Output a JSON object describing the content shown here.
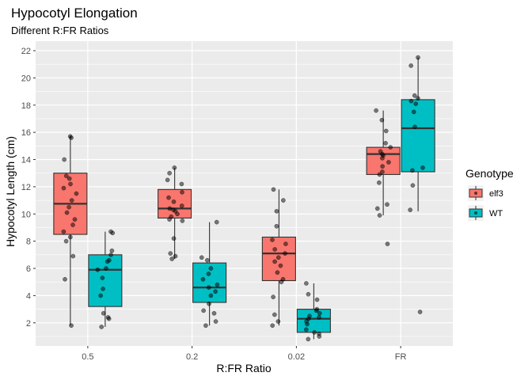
{
  "chart_data": {
    "type": "boxplot",
    "title": "Hypocotyl Elongation",
    "subtitle": "Different R:FR Ratios",
    "xlabel": "R:FR Ratio",
    "ylabel": "Hypocotyl Length (cm)",
    "categories": [
      "0.5",
      "0.2",
      "0.02",
      "FR"
    ],
    "ylim": [
      0.3,
      22.7
    ],
    "yticks": [
      2,
      4,
      6,
      8,
      10,
      12,
      14,
      16,
      18,
      20,
      22
    ],
    "grid": true,
    "legend": {
      "title": "Genotype",
      "position": "right",
      "entries": [
        "elf3",
        "WT"
      ]
    },
    "series": [
      {
        "name": "elf3",
        "color": "#F8766D",
        "boxes": [
          {
            "category": "0.5",
            "min": 1.8,
            "q1": 8.5,
            "median": 10.75,
            "q3": 13.0,
            "max": 15.75
          },
          {
            "category": "0.2",
            "min": 6.7,
            "q1": 9.7,
            "median": 10.4,
            "q3": 11.8,
            "max": 13.4
          },
          {
            "category": "0.02",
            "min": 1.8,
            "q1": 5.1,
            "median": 7.1,
            "q3": 8.3,
            "max": 11.8
          },
          {
            "category": "FR",
            "min": 9.9,
            "q1": 12.9,
            "median": 14.4,
            "q3": 14.9,
            "max": 17.6
          }
        ],
        "points": [
          {
            "category": "0.5",
            "values": [
              15.7,
              15.6,
              14.0,
              12.8,
              12.6,
              12.2,
              11.9,
              11.5,
              11.0,
              10.5,
              10.1,
              9.6,
              9.2,
              8.7,
              8.3,
              8.0,
              6.9,
              5.2,
              1.8
            ]
          },
          {
            "category": "0.2",
            "values": [
              13.4,
              13.0,
              12.5,
              12.2,
              11.6,
              11.2,
              10.9,
              10.6,
              10.4,
              10.3,
              10.2,
              10.0,
              9.8,
              9.6,
              9.5,
              8.2,
              7.1,
              6.9,
              6.7
            ]
          },
          {
            "category": "0.02",
            "values": [
              11.8,
              11.0,
              10.2,
              9.1,
              8.1,
              7.8,
              7.4,
              7.1,
              6.8,
              6.5,
              6.2,
              5.7,
              5.2,
              5.0,
              3.9,
              2.6,
              2.1,
              1.8
            ]
          },
          {
            "category": "FR",
            "values": [
              17.6,
              16.9,
              16.1,
              15.2,
              14.9,
              14.6,
              14.4,
              14.3,
              14.1,
              13.8,
              13.5,
              13.1,
              12.9,
              12.3,
              10.7,
              10.4,
              9.9,
              7.8
            ]
          }
        ]
      },
      {
        "name": "WT",
        "color": "#00BFC4",
        "boxes": [
          {
            "category": "0.5",
            "min": 1.7,
            "q1": 3.2,
            "median": 5.9,
            "q3": 7.0,
            "max": 8.7
          },
          {
            "category": "0.2",
            "min": 1.8,
            "q1": 3.5,
            "median": 4.6,
            "q3": 6.4,
            "max": 9.4
          },
          {
            "category": "0.02",
            "min": 0.8,
            "q1": 1.3,
            "median": 2.3,
            "q3": 3.0,
            "max": 4.9
          },
          {
            "category": "FR",
            "min": 10.2,
            "q1": 13.1,
            "median": 16.3,
            "q3": 18.4,
            "max": 21.5
          }
        ],
        "points": [
          {
            "category": "0.5",
            "values": [
              8.7,
              8.6,
              7.3,
              7.0,
              6.6,
              6.5,
              6.0,
              5.9,
              5.3,
              4.5,
              4.0,
              2.7,
              2.4,
              2.3,
              1.7
            ]
          },
          {
            "category": "0.2",
            "values": [
              9.4,
              6.8,
              6.6,
              6.0,
              5.6,
              5.2,
              4.8,
              4.6,
              4.3,
              4.0,
              3.4,
              2.9,
              2.7,
              2.1,
              1.8
            ]
          },
          {
            "category": "0.02",
            "values": [
              4.9,
              4.1,
              3.7,
              3.0,
              2.9,
              2.7,
              2.5,
              2.4,
              2.3,
              2.1,
              1.9,
              1.5,
              1.3,
              1.2,
              1.0,
              0.8
            ]
          },
          {
            "category": "FR",
            "values": [
              21.5,
              20.9,
              18.7,
              18.5,
              18.3,
              18.1,
              17.5,
              16.4,
              13.4,
              13.2,
              12.1,
              10.3,
              2.8
            ]
          }
        ]
      }
    ]
  }
}
